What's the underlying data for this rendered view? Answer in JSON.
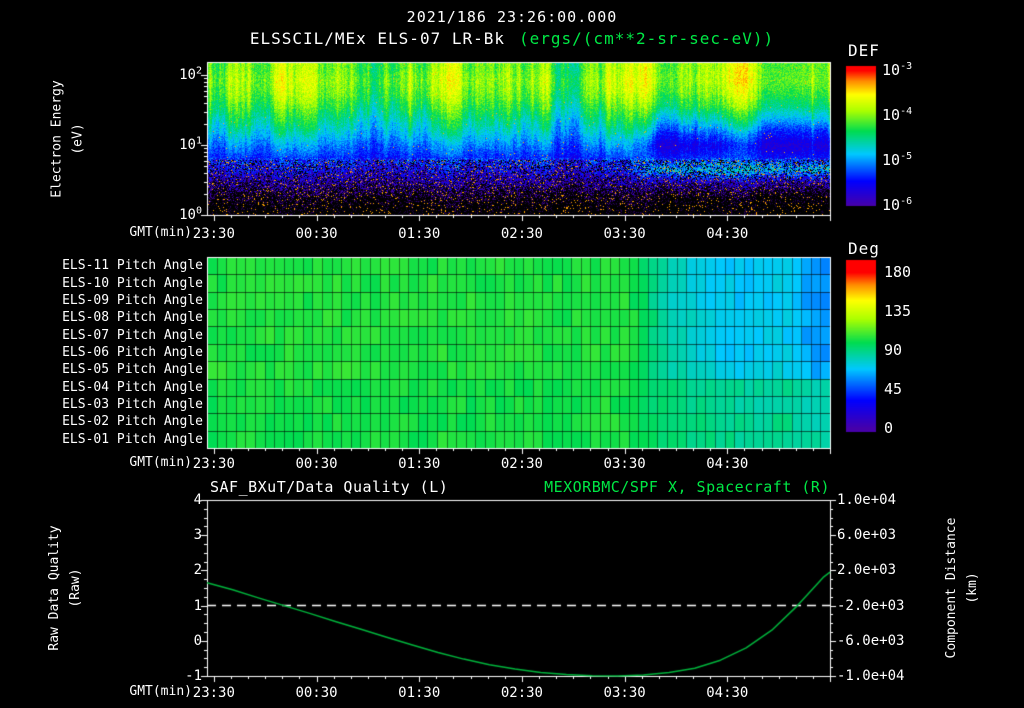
{
  "header": {
    "timestamp": "2021/186 23:26:00.000",
    "instrument": "ELSSCIL/MEx ELS-07 LR-Bk",
    "units": "(ergs/(cm**2-sr-sec-eV))"
  },
  "colors": {
    "background": "#000000",
    "text": "#ffffff",
    "accent_green": "#00e845",
    "curve_green": "#00b43c",
    "frame": "#ffffff"
  },
  "rainbow_colormap": {
    "positions": [
      0,
      0.18,
      0.38,
      0.55,
      0.7,
      0.82,
      0.92,
      1
    ],
    "stops": [
      "#4600aa",
      "#0000ff",
      "#00c8ff",
      "#00dc50",
      "#aaff00",
      "#ffff00",
      "#ff8c00",
      "#ff0000"
    ]
  },
  "chart_data": [
    {
      "type": "heatmap",
      "name": "electron-energy-spectrogram",
      "ylabel_line1": "Electron Energy",
      "ylabel_line2": "(eV)",
      "xlabel": "GMT(min)",
      "x_ticks": [
        "23:30",
        "00:30",
        "01:30",
        "02:30",
        "03:30",
        "04:30"
      ],
      "x_start_offset_min": 4,
      "x_span_min": 364,
      "y_ticks": [
        {
          "base": "10",
          "exp": "2"
        },
        {
          "base": "10",
          "exp": "1"
        },
        {
          "base": "10",
          "exp": "0"
        }
      ],
      "y_log10_range_ev": [
        0,
        2.19
      ],
      "colorbar": {
        "label": "DEF",
        "ticks": [
          {
            "base": "10",
            "exp": "-3"
          },
          {
            "base": "10",
            "exp": "-4"
          },
          {
            "base": "10",
            "exp": "-5"
          },
          {
            "base": "10",
            "exp": "-6"
          }
        ],
        "log10_range": [
          -6,
          -3
        ]
      },
      "values_log10_flux": [
        [
          -4.1,
          -4.2,
          -3.95,
          -4.15,
          -4.0,
          -4.25,
          -4.05,
          -3.9,
          -4.22,
          -4.1,
          -3.98,
          -4.28,
          -4.04,
          -4.0,
          -3.8,
          -3.9,
          -3.75,
          -3.85,
          -3.8,
          -3.77
        ],
        [
          -4.0,
          -4.1,
          -3.85,
          -4.05,
          -3.9,
          -4.15,
          -3.95,
          -3.8,
          -4.12,
          -4.0,
          -3.88,
          -4.18,
          -3.94,
          -3.9,
          -3.75,
          -3.85,
          -3.7,
          -3.8,
          -3.75,
          -3.72
        ],
        [
          -4.1,
          -4.2,
          -3.95,
          -4.15,
          -4.0,
          -4.25,
          -4.05,
          -3.9,
          -4.22,
          -4.1,
          -3.98,
          -4.28,
          -4.04,
          -4.0,
          -3.9,
          -4.0,
          -3.85,
          -3.95,
          -3.9,
          -3.87
        ],
        [
          -4.3,
          -4.38,
          -4.18,
          -4.34,
          -4.22,
          -4.42,
          -4.26,
          -4.14,
          -4.4,
          -4.3,
          -4.2,
          -4.44,
          -4.25,
          -4.22,
          -4.16,
          -4.24,
          -4.12,
          -4.2,
          -4.16,
          -4.14
        ],
        [
          -4.55,
          -4.62,
          -4.45,
          -4.59,
          -4.48,
          -4.66,
          -4.52,
          -4.41,
          -4.63,
          -4.55,
          -4.47,
          -4.68,
          -4.51,
          -4.48,
          -4.57,
          -4.64,
          -4.53,
          -4.6,
          -4.57,
          -4.54
        ],
        [
          -4.8,
          -4.86,
          -4.71,
          -4.83,
          -4.74,
          -4.89,
          -4.77,
          -4.68,
          -4.87,
          -4.8,
          -4.73,
          -4.91,
          -4.76,
          -4.74,
          -5.07,
          -5.13,
          -5.04,
          -5.1,
          -5.07,
          -5.05
        ],
        [
          -5.1,
          -5.15,
          -5.03,
          -5.13,
          -5.05,
          -5.18,
          -5.08,
          -5.0,
          -5.16,
          -5.1,
          -5.04,
          -5.19,
          -5.07,
          -5.05,
          -5.48,
          -5.53,
          -5.45,
          -5.5,
          -5.48,
          -5.46
        ],
        [
          -5.35,
          -5.39,
          -5.29,
          -5.37,
          -5.31,
          -5.41,
          -5.33,
          -5.27,
          -5.4,
          -5.35,
          -5.3,
          -5.42,
          -5.33,
          -5.31,
          -5.33,
          -5.37,
          -5.31,
          -5.35,
          -5.33,
          -5.32
        ],
        [
          -5.6,
          -5.64,
          -5.54,
          -5.62,
          -5.56,
          -5.66,
          -5.58,
          -5.52,
          -5.65,
          -5.6,
          -5.55,
          -5.67,
          -5.58,
          -5.56,
          -4.88,
          -4.92,
          -4.86,
          -4.9,
          -4.88,
          -4.87
        ],
        [
          -5.95,
          -5.98,
          -5.91,
          -5.97,
          -5.92,
          -6.0,
          -5.94,
          -5.89,
          -5.99,
          -5.95,
          -5.91,
          -6.0,
          -5.93,
          -5.92,
          -5.79,
          -5.82,
          -5.77,
          -5.8,
          -5.79,
          -5.78
        ],
        [
          -6.35,
          -6.37,
          -6.32,
          -6.36,
          -6.33,
          -6.38,
          -6.34,
          -6.31,
          -6.37,
          -6.35,
          -6.33,
          -6.39,
          -6.34,
          -6.33,
          -6.39,
          -6.41,
          -6.38,
          -6.4,
          -6.39,
          -6.38
        ],
        [
          -6.6,
          -6.62,
          -6.57,
          -6.61,
          -6.58,
          -6.63,
          -6.59,
          -6.56,
          -6.62,
          -6.6,
          -6.58,
          -6.63,
          -6.59,
          -6.58,
          -6.58,
          -6.61,
          -6.57,
          -6.6,
          -6.59,
          -6.58
        ]
      ]
    },
    {
      "type": "heatmap",
      "name": "pitch-angle-panels",
      "row_labels": [
        "ELS-11 Pitch Angle",
        "ELS-10 Pitch Angle",
        "ELS-09 Pitch Angle",
        "ELS-08 Pitch Angle",
        "ELS-07 Pitch Angle",
        "ELS-06 Pitch Angle",
        "ELS-05 Pitch Angle",
        "ELS-04 Pitch Angle",
        "ELS-03 Pitch Angle",
        "ELS-02 Pitch Angle",
        "ELS-01 Pitch Angle"
      ],
      "xlabel": "GMT(min)",
      "x_ticks": [
        "23:30",
        "00:30",
        "01:30",
        "02:30",
        "03:30",
        "04:30"
      ],
      "colorbar": {
        "label": "Deg",
        "ticks": [
          "180",
          "135",
          "90",
          "45",
          "0"
        ],
        "range": [
          0,
          180
        ]
      },
      "values_deg": [
        [
          104,
          103,
          105,
          104,
          103,
          105,
          104,
          103,
          104,
          105,
          103,
          104,
          104,
          103,
          86,
          76,
          70,
          68,
          72,
          58
        ],
        [
          103,
          104,
          103,
          105,
          104,
          103,
          104,
          105,
          103,
          104,
          104,
          103,
          105,
          104,
          87,
          77,
          71,
          69,
          73,
          59
        ],
        [
          105,
          104,
          104,
          103,
          105,
          104,
          103,
          104,
          105,
          103,
          104,
          105,
          103,
          104,
          85,
          75,
          70,
          68,
          71,
          57
        ],
        [
          104,
          105,
          103,
          104,
          104,
          105,
          104,
          103,
          104,
          104,
          105,
          103,
          104,
          105,
          88,
          78,
          72,
          70,
          74,
          60
        ],
        [
          103,
          104,
          105,
          103,
          104,
          104,
          103,
          105,
          104,
          103,
          104,
          104,
          105,
          103,
          86,
          77,
          71,
          69,
          72,
          58
        ],
        [
          104,
          103,
          104,
          105,
          103,
          104,
          105,
          104,
          103,
          105,
          104,
          103,
          104,
          104,
          87,
          76,
          70,
          68,
          73,
          59
        ],
        [
          105,
          104,
          103,
          104,
          105,
          103,
          104,
          104,
          105,
          104,
          103,
          105,
          104,
          103,
          89,
          80,
          74,
          72,
          76,
          62
        ],
        [
          102,
          101,
          103,
          102,
          101,
          103,
          102,
          101,
          102,
          103,
          101,
          102,
          102,
          101,
          94,
          90,
          87,
          86,
          88,
          82
        ],
        [
          101,
          102,
          101,
          103,
          102,
          101,
          102,
          103,
          101,
          102,
          102,
          101,
          103,
          102,
          93,
          89,
          86,
          85,
          87,
          81
        ],
        [
          102,
          103,
          101,
          102,
          102,
          103,
          102,
          101,
          102,
          102,
          103,
          101,
          102,
          103,
          95,
          91,
          88,
          87,
          89,
          83
        ],
        [
          101,
          102,
          103,
          101,
          102,
          102,
          101,
          103,
          102,
          101,
          102,
          102,
          103,
          101,
          96,
          92,
          89,
          88,
          90,
          84
        ]
      ]
    },
    {
      "type": "line",
      "name": "quality-and-position-timeseries",
      "title_left": "SAF_BXuT/Data Quality (L)",
      "title_right": "MEXORBMC/SPF X, Spacecraft (R)",
      "ylabel_left_line1": "Raw Data Quality",
      "ylabel_left_line2": "(Raw)",
      "ylabel_right_line1": "Component Distance",
      "ylabel_right_line2": "(km)",
      "xlabel": "GMT(min)",
      "x_ticks": [
        "23:30",
        "00:30",
        "01:30",
        "02:30",
        "03:30",
        "04:30"
      ],
      "ylim_left": [
        -1,
        4
      ],
      "y_ticks_left": [
        "4",
        "3",
        "2",
        "1",
        "0",
        "-1"
      ],
      "y_ticks_right": [
        "1.0e+04",
        "6.0e+03",
        "2.0e+03",
        "-2.0e+03",
        "-6.0e+03",
        "-1.0e+04"
      ],
      "series": [
        {
          "name": "SAF_BXuT Data Quality",
          "axis": "left",
          "color": "#ffffff",
          "line_style": "dashed",
          "constant_value": 1
        },
        {
          "name": "MEXORBMC/SPF X Spacecraft",
          "axis": "left",
          "color": "#00b43c",
          "line_style": "solid",
          "points_min_value": [
            [
              0,
              1.65
            ],
            [
              15,
              1.45
            ],
            [
              30,
              1.22
            ],
            [
              45,
              1.0
            ],
            [
              60,
              0.78
            ],
            [
              75,
              0.55
            ],
            [
              90,
              0.33
            ],
            [
              105,
              0.1
            ],
            [
              120,
              -0.12
            ],
            [
              135,
              -0.33
            ],
            [
              150,
              -0.52
            ],
            [
              165,
              -0.68
            ],
            [
              180,
              -0.8
            ],
            [
              195,
              -0.9
            ],
            [
              210,
              -0.96
            ],
            [
              225,
              -0.99
            ],
            [
              240,
              -1.0
            ],
            [
              255,
              -0.97
            ],
            [
              270,
              -0.9
            ],
            [
              285,
              -0.78
            ],
            [
              300,
              -0.55
            ],
            [
              315,
              -0.2
            ],
            [
              330,
              0.3
            ],
            [
              345,
              1.0
            ],
            [
              360,
              1.8
            ],
            [
              364,
              1.95
            ]
          ]
        }
      ]
    }
  ]
}
